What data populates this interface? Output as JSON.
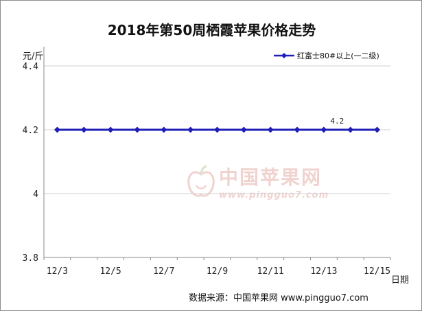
{
  "chart_data": {
    "type": "line",
    "title": "2018年第50周栖霞苹果价格走势",
    "ylabel": "元/斤",
    "xlabel": "日期",
    "ylim": [
      3.8,
      4.4
    ],
    "yticks": [
      "3.8",
      "4",
      "4.2",
      "4.4"
    ],
    "categories": [
      "12/3",
      "12/4",
      "12/5",
      "12/6",
      "12/7",
      "12/8",
      "12/9",
      "12/10",
      "12/11",
      "12/12",
      "12/13",
      "12/14",
      "12/15"
    ],
    "tick_labels": [
      "12/3",
      "12/5",
      "12/7",
      "12/9",
      "12/11",
      "12/13",
      "12/15"
    ],
    "series": [
      {
        "name": "红富士80#以上(一二级)",
        "color": "#1f1fb8",
        "values": [
          4.2,
          4.2,
          4.2,
          4.2,
          4.2,
          4.2,
          4.2,
          4.2,
          4.2,
          4.2,
          4.2,
          4.2,
          4.2
        ]
      }
    ],
    "data_label": {
      "category": "12/14",
      "text": "4.2"
    },
    "grid": true,
    "legend_position": "top-right"
  },
  "watermark": {
    "name": "中国苹果网",
    "url": "www.pingguo7.com"
  },
  "source": "数据来源：中国苹果网 www.pingguo7.com"
}
